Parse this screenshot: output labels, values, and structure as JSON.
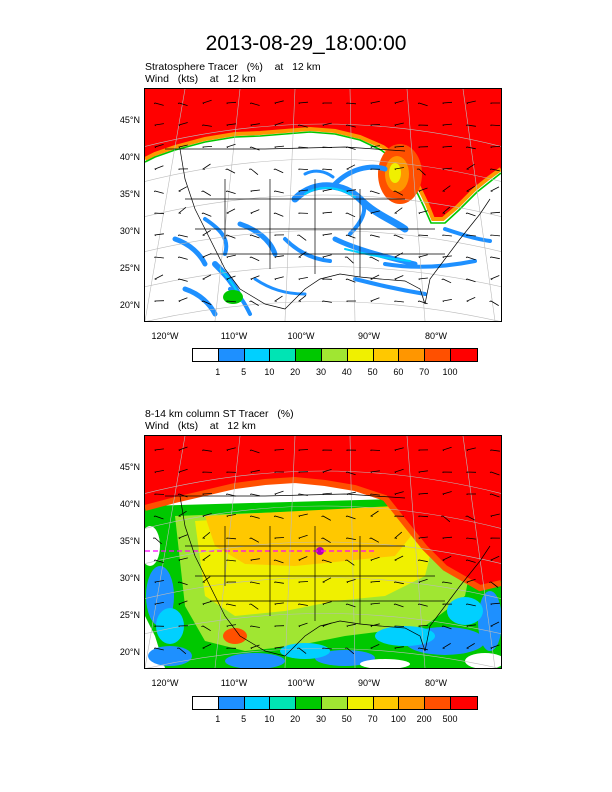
{
  "title": "2013-08-29_18:00:00",
  "lat_labels": [
    "45°N",
    "40°N",
    "35°N",
    "30°N",
    "25°N",
    "20°N"
  ],
  "lon_labels": [
    "120°W",
    "110°W",
    "100°W",
    "90°W",
    "80°W"
  ],
  "panels": [
    {
      "field_label": "Stratosphere Tracer",
      "field_units": "(%)",
      "field_level": "at   12 km",
      "wind_label": "Wind",
      "wind_units": "(kts)",
      "wind_level": "at   12 km",
      "colorbar": {
        "colors": [
          "#ffffff",
          "#1e90ff",
          "#00d0ff",
          "#00e4b4",
          "#00c800",
          "#a0e632",
          "#f0f000",
          "#ffc800",
          "#ff9600",
          "#ff5000",
          "#ff0000"
        ],
        "labels": [
          "1",
          "5",
          "10",
          "20",
          "30",
          "40",
          "50",
          "60",
          "70",
          "100"
        ]
      }
    },
    {
      "field_label": "8-14 km column ST Tracer",
      "field_units": "(%)",
      "field_level": "",
      "wind_label": "Wind",
      "wind_units": "(kts)",
      "wind_level": "at   12 km",
      "colorbar": {
        "colors": [
          "#ffffff",
          "#1e90ff",
          "#00d0ff",
          "#00e4b4",
          "#00c800",
          "#a0e632",
          "#f0f000",
          "#ffc800",
          "#ff9600",
          "#ff5000",
          "#ff0000"
        ],
        "labels": [
          "1",
          "5",
          "10",
          "20",
          "30",
          "50",
          "70",
          "100",
          "200",
          "500"
        ]
      }
    }
  ]
}
